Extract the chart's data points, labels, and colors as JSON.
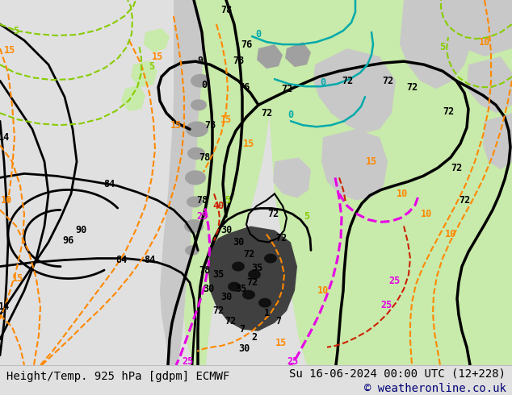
{
  "title_left": "Height/Temp. 925 hPa [gdpm] ECMWF",
  "title_right": "Su 16-06-2024 00:00 UTC (12+228)",
  "copyright": "© weatheronline.co.uk",
  "bg_color": "#e0e0e0",
  "bottom_bar_color": "#ffffff",
  "text_color": "#000000",
  "copyright_color": "#000077",
  "title_fontsize": 10,
  "copyright_fontsize": 10,
  "fig_width": 6.34,
  "fig_height": 4.9,
  "dpi": 100
}
